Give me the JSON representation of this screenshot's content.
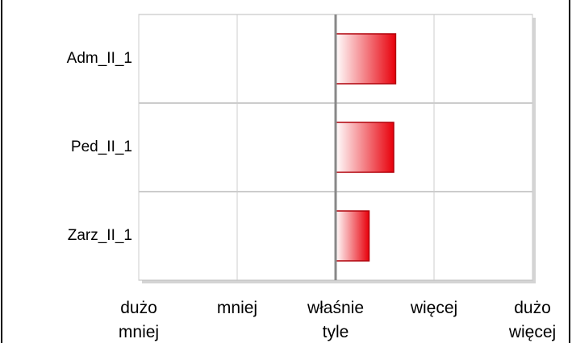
{
  "chart_data": {
    "type": "bar",
    "orientation": "horizontal",
    "categories": [
      "Adm_II_1",
      "Ped_II_1",
      "Zarz_II_1"
    ],
    "values": [
      0.61,
      0.59,
      0.34
    ],
    "color": "#e8000b",
    "xlim": [
      -2,
      2
    ],
    "xticks": [
      {
        "value": -2,
        "label": "dużo mniej"
      },
      {
        "value": -1,
        "label": "mniej"
      },
      {
        "value": 0,
        "label": "właśnie tyle"
      },
      {
        "value": 1,
        "label": "więcej"
      },
      {
        "value": 2,
        "label": "dużo więcej"
      }
    ],
    "grid": true
  }
}
